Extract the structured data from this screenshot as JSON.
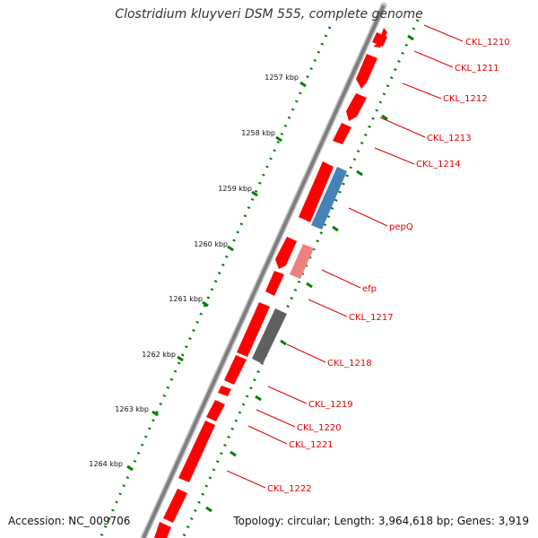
{
  "title": "Clostridium kluyveri DSM 555, complete genome",
  "footer": {
    "accession": "Accession: NC_009706",
    "summary": "Topology: circular; Length: 3,964,618 bp; Genes: 3,919"
  },
  "colors": {
    "gene_red": "#ff0000",
    "gene_pink": "#f08080",
    "gene_blue": "#4682b4",
    "gene_grey": "#606060",
    "backbone": "#7f7f7f",
    "tick_green": "#008000",
    "label_red": "#e00000"
  },
  "kbp_ticks": [
    "1257 kbp",
    "1258 kbp",
    "1259 kbp",
    "1260 kbp",
    "1261 kbp",
    "1262 kbp",
    "1263 kbp",
    "1264 kbp"
  ],
  "gene_labels": [
    {
      "name": "CKL_1210"
    },
    {
      "name": "CKL_1211"
    },
    {
      "name": "CKL_1212"
    },
    {
      "name": "CKL_1213"
    },
    {
      "name": "CKL_1214"
    },
    {
      "name": "pepQ"
    },
    {
      "name": "efp"
    },
    {
      "name": "CKL_1217"
    },
    {
      "name": "CKL_1218"
    },
    {
      "name": "CKL_1219"
    },
    {
      "name": "CKL_1220"
    },
    {
      "name": "CKL_1221"
    },
    {
      "name": "CKL_1222"
    }
  ]
}
